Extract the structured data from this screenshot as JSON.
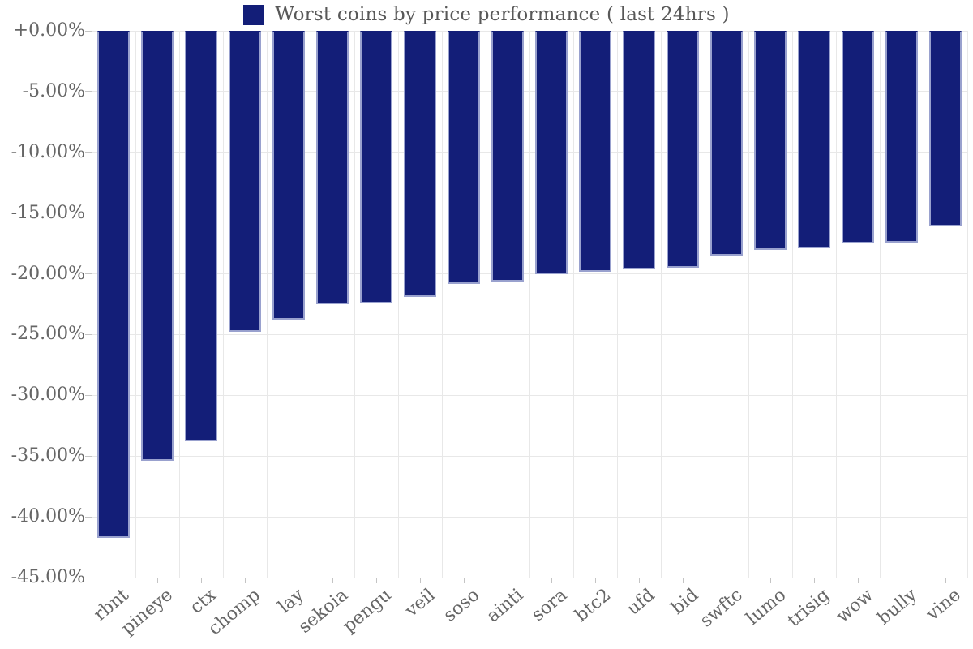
{
  "legend": {
    "label": "Worst coins by price performance ( last 24hrs )"
  },
  "y_axis": {
    "tick_labels": [
      "+0.00%",
      "-5.00%",
      "-10.00%",
      "-15.00%",
      "-20.00%",
      "-25.00%",
      "-30.00%",
      "-35.00%",
      "-40.00%",
      "-45.00%"
    ]
  },
  "colors": {
    "bar_fill": "#131E78",
    "bar_edge": "#99A1CE",
    "grid": "#E8E8E8",
    "tick_mark": "#C4C4C4",
    "tick_text": "#666666",
    "title_text": "#585858",
    "background": "#FFFFFF"
  },
  "chart_data": {
    "type": "bar",
    "title": "Worst coins by price performance ( last 24hrs )",
    "categories": [
      "rbnt",
      "pineye",
      "ctx",
      "chomp",
      "lay",
      "sekoia",
      "pengu",
      "veil",
      "soso",
      "ainti",
      "sora",
      "btc2",
      "ufd",
      "bid",
      "swftc",
      "lumo",
      "trisig",
      "wow",
      "bully",
      "vine"
    ],
    "values": [
      -41.7,
      -35.4,
      -33.8,
      -24.8,
      -23.8,
      -22.5,
      -22.4,
      -21.9,
      -20.8,
      -20.6,
      -20.0,
      -19.8,
      -19.6,
      -19.5,
      -18.5,
      -18.0,
      -17.9,
      -17.5,
      -17.4,
      -16.1
    ],
    "unit": "%",
    "xlabel": "",
    "ylabel": "",
    "ylim": [
      -45,
      0
    ],
    "ytick_step": 5,
    "grid": true,
    "legend_position": "top center",
    "bar_orientation": "vertical-negative"
  }
}
